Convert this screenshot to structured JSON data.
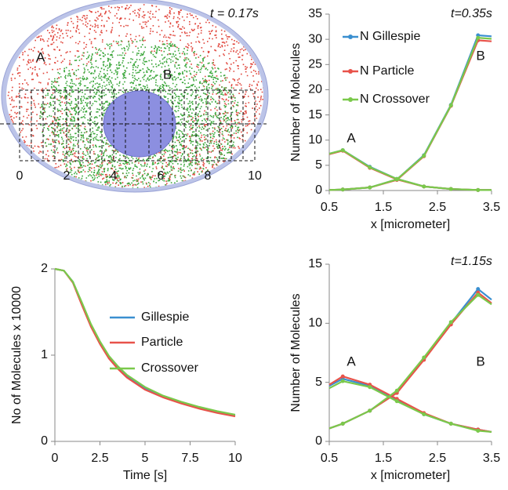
{
  "figure": {
    "title": "t = 0.17s",
    "labels": [
      "A",
      "B"
    ],
    "scale": [
      0,
      2,
      4,
      6,
      8,
      10
    ]
  },
  "chart_data": [
    {
      "type": "line",
      "title": "t=0.35s",
      "x_label": "x [micrometer]",
      "y_label": "Number of Molecules",
      "x": [
        0.5,
        0.75,
        1.25,
        1.75,
        2.25,
        2.75,
        3.25,
        3.5
      ],
      "xlim": [
        0.5,
        3.5
      ],
      "xticks": [
        0.5,
        1.5,
        2.5,
        3.5
      ],
      "ylim": [
        0,
        35
      ],
      "yticks": [
        0,
        5,
        10,
        15,
        20,
        25,
        30,
        35
      ],
      "annotations": [
        "A",
        "B"
      ],
      "markers": true,
      "series": [
        {
          "name": "N Gillespie",
          "color": "#3a8fd0",
          "values": [
            7.3,
            8,
            4.7,
            2.3,
            0.8,
            0.3,
            0.1,
            0.1
          ],
          "values_b": [
            0.1,
            0.2,
            0.6,
            2.2,
            7,
            17,
            30.8,
            30.6
          ]
        },
        {
          "name": "N Particle",
          "color": "#e8534a",
          "values": [
            7.2,
            7.9,
            4.5,
            2.2,
            0.8,
            0.3,
            0.1,
            0.1
          ],
          "values_b": [
            0.1,
            0.2,
            0.6,
            2.1,
            6.8,
            16.8,
            29.8,
            29.6
          ]
        },
        {
          "name": "N Crossover",
          "color": "#7ac94b",
          "values": [
            7.3,
            8,
            4.6,
            2.3,
            0.8,
            0.3,
            0.1,
            0.1
          ],
          "values_b": [
            0.1,
            0.2,
            0.6,
            2.2,
            6.9,
            16.9,
            30.3,
            30.1
          ]
        }
      ]
    },
    {
      "type": "line",
      "x_label": "Time [s]",
      "y_label": "No of Molecules x 10000",
      "x": [
        0,
        0.5,
        1,
        1.5,
        2,
        2.5,
        3,
        3.5,
        4,
        5,
        6,
        7,
        8,
        9,
        10
      ],
      "xlim": [
        0,
        10
      ],
      "xticks": [
        0,
        2.5,
        5,
        7.5,
        10
      ],
      "ylim": [
        0,
        2
      ],
      "yticks": [
        0,
        1,
        2
      ],
      "markers": false,
      "series": [
        {
          "name": "Gillespie",
          "color": "#3a8fd0",
          "values": [
            2,
            1.98,
            1.85,
            1.6,
            1.35,
            1.15,
            0.98,
            0.86,
            0.76,
            0.62,
            0.52,
            0.45,
            0.39,
            0.34,
            0.3
          ]
        },
        {
          "name": "Particle",
          "color": "#e8534a",
          "values": [
            2,
            1.98,
            1.84,
            1.58,
            1.33,
            1.13,
            0.96,
            0.84,
            0.74,
            0.6,
            0.51,
            0.44,
            0.38,
            0.33,
            0.29
          ]
        },
        {
          "name": "Crossover",
          "color": "#7ac94b",
          "values": [
            2,
            1.98,
            1.85,
            1.61,
            1.36,
            1.16,
            0.99,
            0.87,
            0.77,
            0.63,
            0.53,
            0.46,
            0.4,
            0.35,
            0.31
          ]
        }
      ]
    },
    {
      "type": "line",
      "title": "t=1.15s",
      "x_label": "x [micrometer]",
      "y_label": "Number of Molecules",
      "x": [
        0.5,
        0.75,
        1.25,
        1.75,
        2.25,
        2.75,
        3.25,
        3.5
      ],
      "xlim": [
        0.5,
        3.5
      ],
      "xticks": [
        0.5,
        1.5,
        2.5,
        3.5
      ],
      "ylim": [
        0,
        15
      ],
      "yticks": [
        0,
        5,
        10,
        15
      ],
      "annotations": [
        "A",
        "B"
      ],
      "markers": true,
      "series": [
        {
          "name": "N Gillespie",
          "color": "#3a8fd0",
          "values": [
            4.7,
            5.3,
            4.7,
            3.5,
            2.3,
            1.5,
            1,
            0.8
          ],
          "values_b": [
            1.1,
            1.5,
            2.6,
            4.2,
            7,
            10,
            12.9,
            12
          ],
          "legend": false
        },
        {
          "name": "N Particle",
          "color": "#e8534a",
          "values": [
            4.8,
            5.5,
            4.8,
            3.6,
            2.4,
            1.5,
            1,
            0.8
          ],
          "values_b": [
            1.1,
            1.5,
            2.6,
            4.1,
            6.9,
            9.9,
            12.6,
            11.7
          ],
          "legend": false
        },
        {
          "name": "N Crossover",
          "color": "#7ac94b",
          "values": [
            4.5,
            5.1,
            4.6,
            3.4,
            2.3,
            1.5,
            0.9,
            0.8
          ],
          "values_b": [
            1.1,
            1.5,
            2.6,
            4.3,
            7.1,
            10.1,
            12.4,
            11.6
          ],
          "legend": false
        }
      ]
    }
  ]
}
